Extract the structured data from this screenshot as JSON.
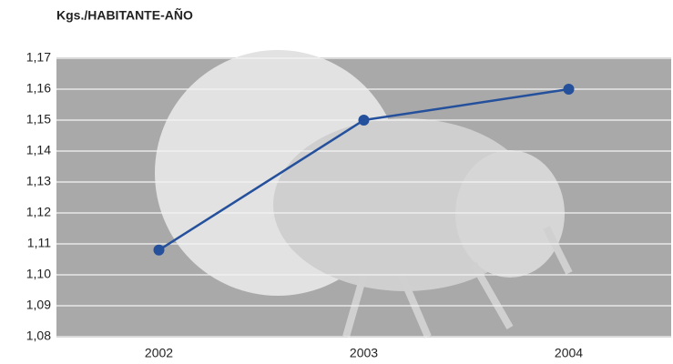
{
  "chart_data": {
    "type": "line",
    "title": "Kgs./HABITANTE-AÑO",
    "categories": [
      "2002",
      "2003",
      "2004"
    ],
    "values": [
      1.108,
      1.15,
      1.16
    ],
    "color": "#24509c",
    "ylim": [
      1.08,
      1.17
    ],
    "yticks": [
      {
        "value": 1.08,
        "label": "1,08"
      },
      {
        "value": 1.09,
        "label": "1,09"
      },
      {
        "value": 1.1,
        "label": "1,10"
      },
      {
        "value": 1.11,
        "label": "1,11"
      },
      {
        "value": 1.12,
        "label": "1,12"
      },
      {
        "value": 1.13,
        "label": "1,13"
      },
      {
        "value": 1.14,
        "label": "1,14"
      },
      {
        "value": 1.15,
        "label": "1,15"
      },
      {
        "value": 1.16,
        "label": "1,16"
      },
      {
        "value": 1.17,
        "label": "1,17"
      }
    ],
    "grid": true
  }
}
